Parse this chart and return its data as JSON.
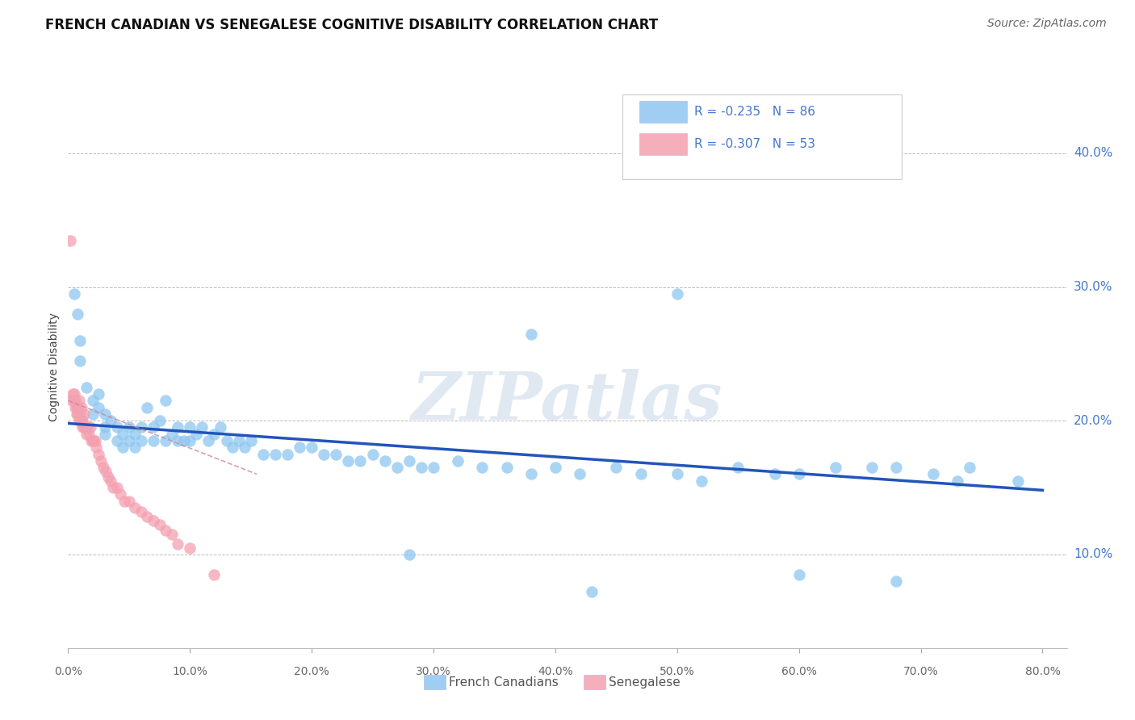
{
  "title": "FRENCH CANADIAN VS SENEGALESE COGNITIVE DISABILITY CORRELATION CHART",
  "source": "Source: ZipAtlas.com",
  "ylabel": "Cognitive Disability",
  "ytick_labels": [
    "10.0%",
    "20.0%",
    "30.0%",
    "40.0%"
  ],
  "ytick_values": [
    0.1,
    0.2,
    0.3,
    0.4
  ],
  "xlim": [
    0.0,
    0.82
  ],
  "ylim": [
    0.03,
    0.45
  ],
  "legend_entries": [
    {
      "label": "R = -0.235   N = 86",
      "color": "#a8c8e8"
    },
    {
      "label": "R = -0.307   N = 53",
      "color": "#f4a8b8"
    }
  ],
  "bottom_legend": [
    {
      "label": "French Canadians",
      "color": "#a8c8e8"
    },
    {
      "label": "Senegalese",
      "color": "#f4a8b8"
    }
  ],
  "blue_scatter_x": [
    0.005,
    0.008,
    0.01,
    0.01,
    0.015,
    0.02,
    0.02,
    0.025,
    0.025,
    0.03,
    0.03,
    0.03,
    0.035,
    0.04,
    0.04,
    0.045,
    0.045,
    0.05,
    0.05,
    0.055,
    0.055,
    0.06,
    0.06,
    0.065,
    0.07,
    0.07,
    0.075,
    0.08,
    0.08,
    0.085,
    0.09,
    0.09,
    0.095,
    0.1,
    0.1,
    0.105,
    0.11,
    0.115,
    0.12,
    0.125,
    0.13,
    0.135,
    0.14,
    0.145,
    0.15,
    0.16,
    0.17,
    0.18,
    0.19,
    0.2,
    0.21,
    0.22,
    0.23,
    0.24,
    0.25,
    0.26,
    0.27,
    0.28,
    0.29,
    0.3,
    0.32,
    0.34,
    0.36,
    0.38,
    0.4,
    0.42,
    0.45,
    0.47,
    0.5,
    0.52,
    0.55,
    0.58,
    0.6,
    0.63,
    0.66,
    0.68,
    0.71,
    0.74,
    0.5,
    0.38,
    0.28,
    0.6,
    0.43,
    0.68,
    0.73,
    0.78
  ],
  "blue_scatter_y": [
    0.295,
    0.28,
    0.26,
    0.245,
    0.225,
    0.215,
    0.205,
    0.22,
    0.21,
    0.205,
    0.195,
    0.19,
    0.2,
    0.195,
    0.185,
    0.19,
    0.18,
    0.185,
    0.195,
    0.19,
    0.18,
    0.195,
    0.185,
    0.21,
    0.195,
    0.185,
    0.2,
    0.215,
    0.185,
    0.19,
    0.185,
    0.195,
    0.185,
    0.195,
    0.185,
    0.19,
    0.195,
    0.185,
    0.19,
    0.195,
    0.185,
    0.18,
    0.185,
    0.18,
    0.185,
    0.175,
    0.175,
    0.175,
    0.18,
    0.18,
    0.175,
    0.175,
    0.17,
    0.17,
    0.175,
    0.17,
    0.165,
    0.17,
    0.165,
    0.165,
    0.17,
    0.165,
    0.165,
    0.16,
    0.165,
    0.16,
    0.165,
    0.16,
    0.16,
    0.155,
    0.165,
    0.16,
    0.16,
    0.165,
    0.165,
    0.165,
    0.16,
    0.165,
    0.295,
    0.265,
    0.1,
    0.085,
    0.072,
    0.08,
    0.155,
    0.155
  ],
  "pink_scatter_x": [
    0.002,
    0.003,
    0.004,
    0.005,
    0.005,
    0.006,
    0.006,
    0.007,
    0.007,
    0.008,
    0.008,
    0.009,
    0.009,
    0.01,
    0.01,
    0.011,
    0.011,
    0.012,
    0.012,
    0.013,
    0.013,
    0.014,
    0.015,
    0.015,
    0.016,
    0.017,
    0.018,
    0.019,
    0.02,
    0.021,
    0.022,
    0.023,
    0.025,
    0.027,
    0.029,
    0.031,
    0.033,
    0.035,
    0.037,
    0.04,
    0.043,
    0.046,
    0.05,
    0.055,
    0.06,
    0.065,
    0.07,
    0.075,
    0.08,
    0.085,
    0.09,
    0.1,
    0.12
  ],
  "pink_scatter_y": [
    0.335,
    0.215,
    0.22,
    0.215,
    0.22,
    0.215,
    0.21,
    0.21,
    0.205,
    0.21,
    0.205,
    0.2,
    0.215,
    0.205,
    0.2,
    0.2,
    0.21,
    0.2,
    0.195,
    0.195,
    0.205,
    0.195,
    0.195,
    0.19,
    0.195,
    0.19,
    0.195,
    0.185,
    0.185,
    0.185,
    0.185,
    0.18,
    0.175,
    0.17,
    0.165,
    0.162,
    0.158,
    0.155,
    0.15,
    0.15,
    0.145,
    0.14,
    0.14,
    0.135,
    0.132,
    0.128,
    0.125,
    0.122,
    0.118,
    0.115,
    0.108,
    0.105,
    0.085
  ],
  "blue_line_x": [
    0.0,
    0.8
  ],
  "blue_line_y": [
    0.198,
    0.148
  ],
  "pink_line_x": [
    0.0,
    0.155
  ],
  "pink_line_y": [
    0.215,
    0.16
  ],
  "scatter_color_blue": "#8ec6f0",
  "scatter_color_pink": "#f4a0b0",
  "line_color_blue": "#2255bb",
  "line_color_pink": "#d08898",
  "watermark_text": "ZIPatlas",
  "watermark_color": "#c8d8e8",
  "grid_color": "#bbbbbb",
  "title_fontsize": 12,
  "source_fontsize": 10,
  "tick_color": "#4477cc",
  "xtick_vals": [
    0.0,
    0.1,
    0.2,
    0.3,
    0.4,
    0.5,
    0.6,
    0.7,
    0.8
  ],
  "xtick_labels": [
    "0.0%",
    "10.0%",
    "20.0%",
    "30.0%",
    "40.0%",
    "50.0%",
    "60.0%",
    "70.0%",
    "80.0%"
  ]
}
